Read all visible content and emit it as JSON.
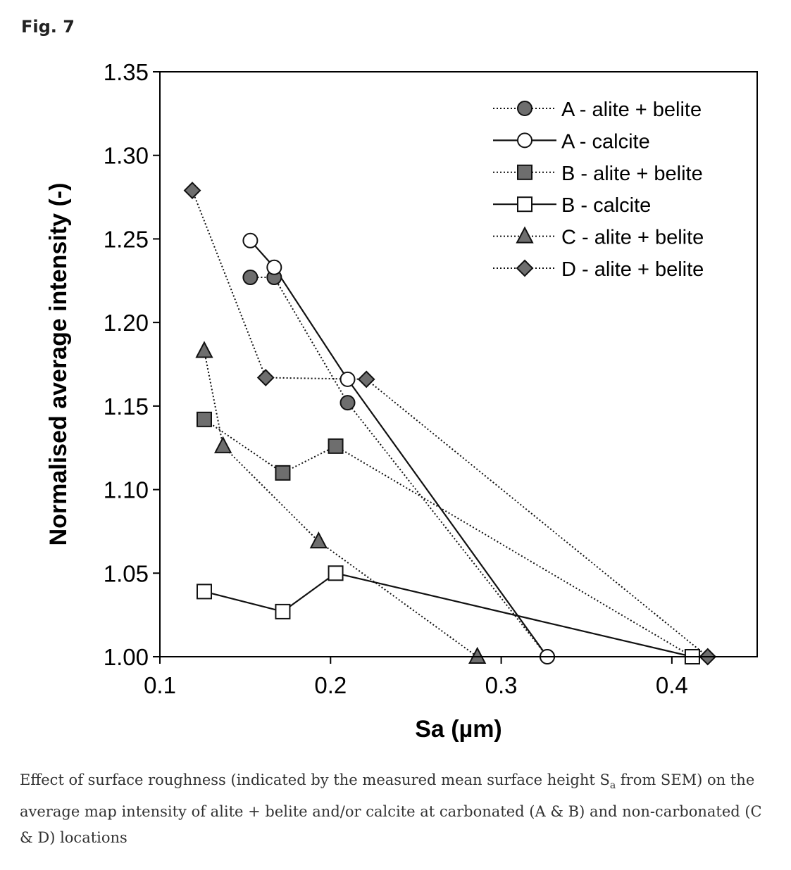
{
  "figure_label": "Fig. 7",
  "caption": {
    "part1": "Effect of surface roughness (indicated by the measured mean surface height S",
    "sub": "a",
    "part2": " from SEM) on the average map intensity of alite + belite and/or calcite at carbonated (A & B) and non-carbonated (C & D) locations"
  },
  "chart_data": {
    "type": "scatter",
    "title": "",
    "xlabel": "Sa (µm)",
    "ylabel": "Normalised average intensity (-)",
    "xlim": [
      0.1,
      0.45
    ],
    "ylim": [
      1.0,
      1.35
    ],
    "xticks": [
      "0.1",
      "0.2",
      "0.3",
      "0.4"
    ],
    "yticks": [
      "1.00",
      "1.05",
      "1.10",
      "1.15",
      "1.20",
      "1.25",
      "1.30",
      "1.35"
    ],
    "grid": false,
    "legend_position": "top-right",
    "series": [
      {
        "name": "A - alite + belite",
        "marker": "circle",
        "fill": "#6e6e6e",
        "line": "dotted",
        "x": [
          0.153,
          0.167,
          0.21,
          0.327
        ],
        "y": [
          1.227,
          1.227,
          1.152,
          1.0
        ]
      },
      {
        "name": "A - calcite",
        "marker": "circle",
        "fill": "#ffffff",
        "line": "solid",
        "x": [
          0.153,
          0.167,
          0.21,
          0.327
        ],
        "y": [
          1.249,
          1.233,
          1.166,
          1.0
        ]
      },
      {
        "name": "B - alite + belite",
        "marker": "square",
        "fill": "#6e6e6e",
        "line": "dotted",
        "x": [
          0.126,
          0.172,
          0.203,
          0.412
        ],
        "y": [
          1.142,
          1.11,
          1.126,
          1.0
        ]
      },
      {
        "name": "B - calcite",
        "marker": "square",
        "fill": "#ffffff",
        "line": "solid",
        "x": [
          0.126,
          0.172,
          0.203,
          0.412
        ],
        "y": [
          1.039,
          1.027,
          1.05,
          1.0
        ]
      },
      {
        "name": "C - alite + belite",
        "marker": "triangle",
        "fill": "#6e6e6e",
        "line": "dotted",
        "x": [
          0.126,
          0.137,
          0.193,
          0.286
        ],
        "y": [
          1.183,
          1.126,
          1.069,
          1.0
        ]
      },
      {
        "name": "D - alite + belite",
        "marker": "diamond",
        "fill": "#6e6e6e",
        "line": "dotted",
        "x": [
          0.119,
          0.162,
          0.221,
          0.421
        ],
        "y": [
          1.279,
          1.167,
          1.166,
          1.0
        ]
      }
    ]
  }
}
